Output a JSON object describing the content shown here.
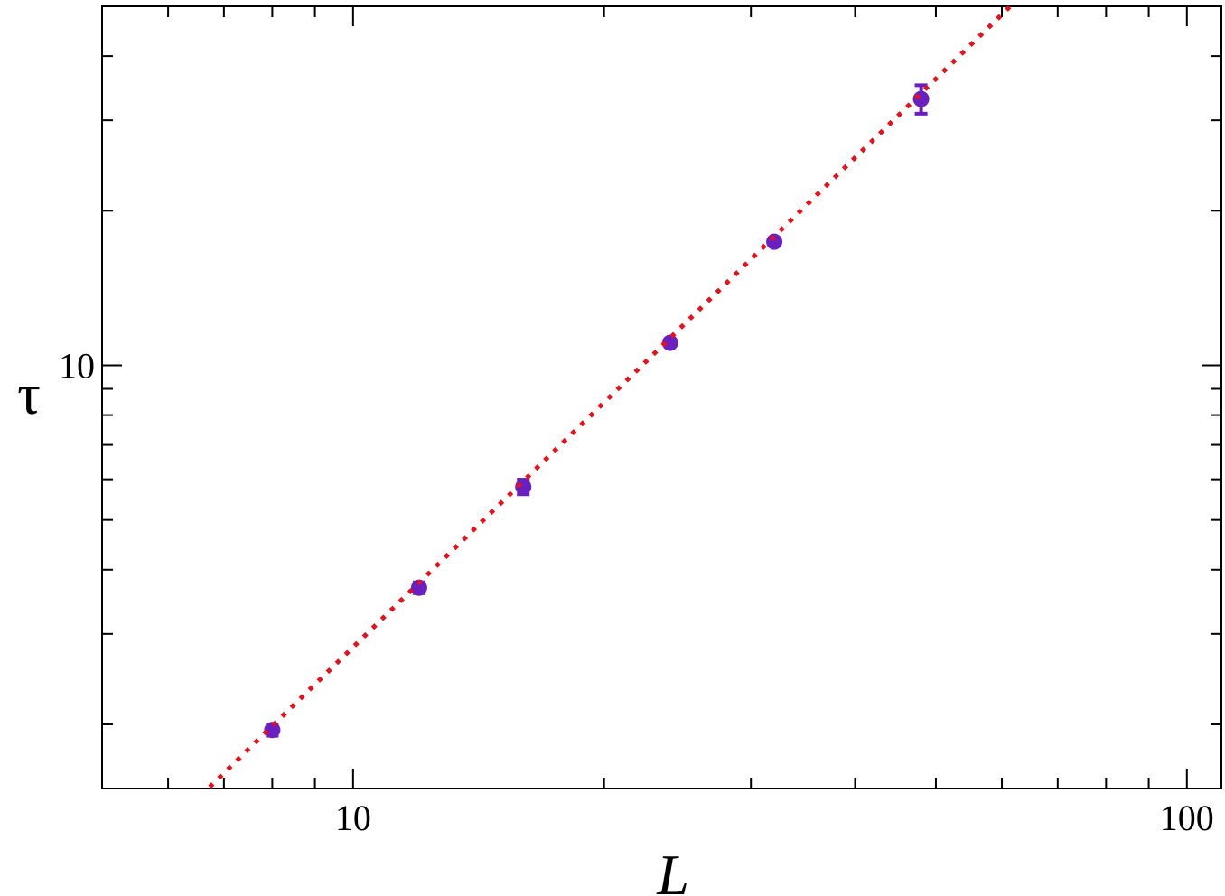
{
  "chart_data": {
    "type": "scatter",
    "x_label": "L",
    "y_label": "τ",
    "log_x": true,
    "log_y": true,
    "xlim": [
      5,
      110
    ],
    "ylim": [
      1.5,
      50
    ],
    "xticks": [
      10,
      100
    ],
    "yticks": [
      10
    ],
    "xminorticks": [
      6,
      7,
      8,
      9,
      20,
      30,
      40,
      50,
      60,
      70,
      80,
      90
    ],
    "yminorticks": [
      2,
      3,
      4,
      5,
      6,
      7,
      8,
      9,
      20,
      30,
      40
    ],
    "series": [
      {
        "kind": "points",
        "color": "#6a1fc0",
        "x": [
          8,
          12,
          16,
          24,
          32,
          48
        ],
        "values": [
          1.95,
          3.69,
          5.8,
          11.06,
          17.4,
          33.0
        ],
        "errors": [
          0.05,
          0.09,
          0.19,
          0.1,
          0.1,
          2.1
        ]
      },
      {
        "kind": "fit",
        "color": "#e8101a",
        "dotted": true,
        "x": [
          6.73,
          61.4
        ],
        "values": [
          1.51,
          50
        ]
      }
    ]
  }
}
